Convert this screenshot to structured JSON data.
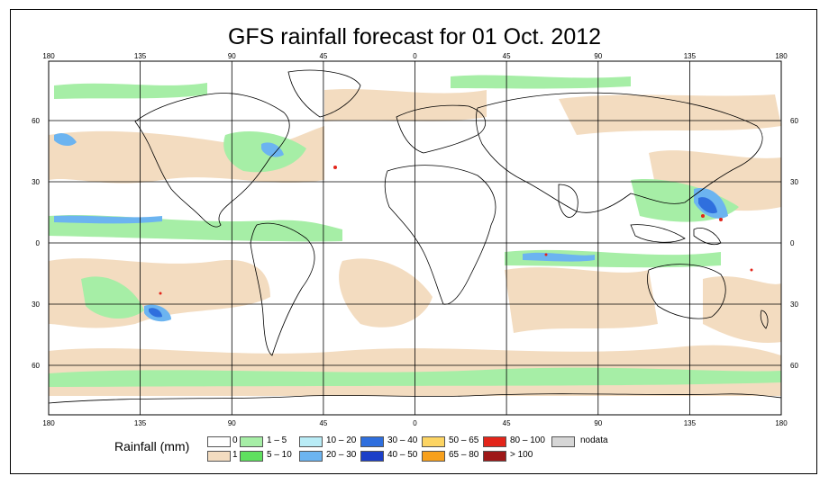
{
  "title": "GFS rainfall forecast for 01 Oct. 2012",
  "lon_ticks": [
    "180",
    "135",
    "90",
    "45",
    "0",
    "45",
    "90",
    "135",
    "180"
  ],
  "lat_ticks": [
    "60",
    "30",
    "0",
    "30",
    "60"
  ],
  "legend": {
    "title": "Rainfall (mm)",
    "items": [
      {
        "label": "0",
        "color": "#ffffff"
      },
      {
        "label": "1",
        "color": "#f3dcc0"
      },
      {
        "label": "1 – 5",
        "color": "#a6eea6"
      },
      {
        "label": "5 – 10",
        "color": "#5fe05f"
      },
      {
        "label": "10 – 20",
        "color": "#b9ecf6"
      },
      {
        "label": "20 – 30",
        "color": "#6cb4f0"
      },
      {
        "label": "30 – 40",
        "color": "#2f6fde"
      },
      {
        "label": "40 – 50",
        "color": "#1c3fc8"
      },
      {
        "label": "50 – 65",
        "color": "#fcd463"
      },
      {
        "label": "65 – 80",
        "color": "#f7a01c"
      },
      {
        "label": "80 – 100",
        "color": "#e3251a"
      },
      {
        "label": "> 100",
        "color": "#9e1818"
      },
      {
        "label": "nodata",
        "color": "#d6d6d6"
      }
    ]
  }
}
